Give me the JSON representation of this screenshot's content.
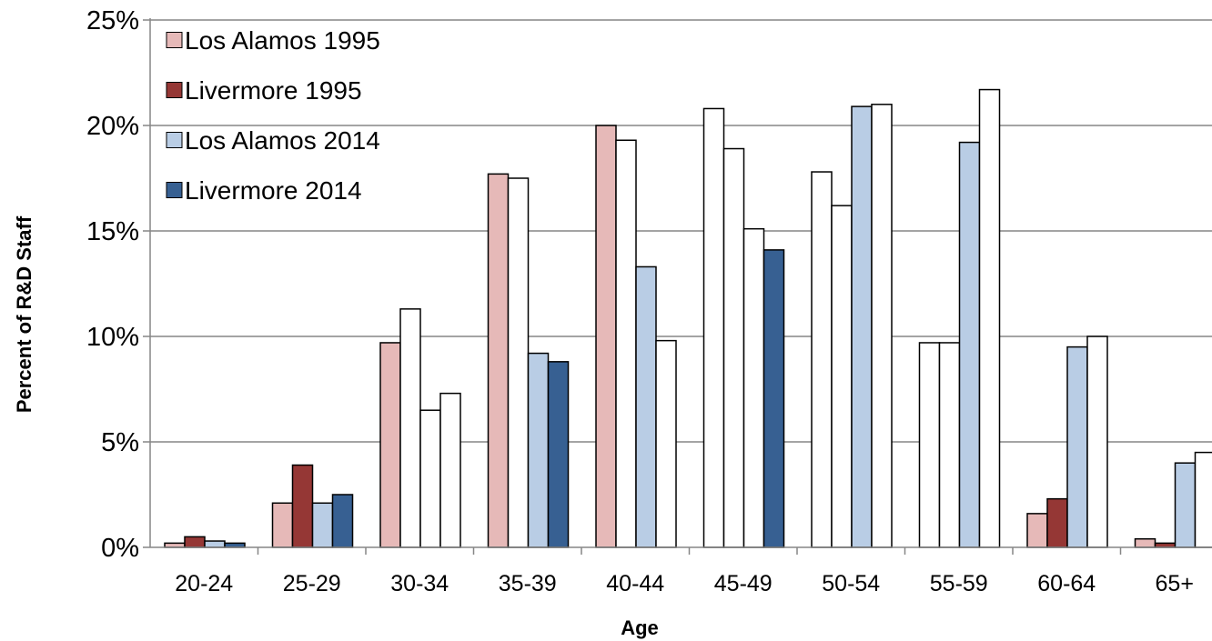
{
  "chart_data": {
    "type": "bar",
    "title": "",
    "xlabel": "Age",
    "ylabel": "Percent of R&D Staff",
    "categories": [
      "20-24",
      "25-29",
      "30-34",
      "35-39",
      "40-44",
      "45-49",
      "50-54",
      "55-59",
      "60-64",
      "65+"
    ],
    "y_ticks": [
      "0%",
      "5%",
      "10%",
      "15%",
      "20%",
      "25%"
    ],
    "ylim": [
      0,
      25
    ],
    "grid": "horizontal",
    "legend_position": "top-left",
    "series": [
      {
        "name": "Los Alamos 1995",
        "color": "#e6b9b8",
        "values": [
          0.2,
          2.1,
          9.7,
          17.7,
          20.0,
          20.8,
          17.8,
          9.7,
          1.6,
          0.4
        ]
      },
      {
        "name": "Livermore 1995",
        "color": "#953735",
        "values": [
          0.5,
          3.9,
          11.3,
          17.5,
          19.3,
          18.9,
          16.2,
          9.7,
          2.3,
          0.2
        ]
      },
      {
        "name": "Los Alamos 2014",
        "color": "#b9cde5",
        "values": [
          0.3,
          2.1,
          6.5,
          9.2,
          13.3,
          15.1,
          20.9,
          19.2,
          9.5,
          4.0
        ]
      },
      {
        "name": "Livermore 2014",
        "color": "#376092",
        "values": [
          0.2,
          2.5,
          7.3,
          8.8,
          9.8,
          14.1,
          21.0,
          21.7,
          10.0,
          4.5
        ]
      }
    ],
    "unfilled_bars": [
      [
        2,
        1
      ],
      [
        2,
        2
      ],
      [
        2,
        3
      ],
      [
        3,
        1
      ],
      [
        4,
        1
      ],
      [
        4,
        3
      ],
      [
        5,
        0
      ],
      [
        5,
        1
      ],
      [
        5,
        2
      ],
      [
        6,
        0
      ],
      [
        6,
        1
      ],
      [
        6,
        3
      ],
      [
        7,
        0
      ],
      [
        7,
        1
      ],
      [
        7,
        3
      ],
      [
        8,
        3
      ],
      [
        9,
        3
      ]
    ]
  }
}
